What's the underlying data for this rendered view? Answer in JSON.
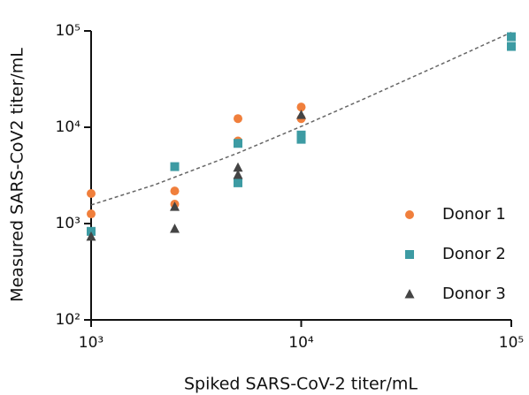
{
  "chart_data": {
    "type": "scatter",
    "x_label": "Spiked SARS-CoV-2 titer/mL",
    "y_label": "Measured SARS-CoV2 titer/mL",
    "xscale": "log",
    "yscale": "log",
    "xlim": [
      1000,
      100000
    ],
    "ylim": [
      100,
      100000
    ],
    "xticks": [
      {
        "value": 1000,
        "label": "10³"
      },
      {
        "value": 10000,
        "label": "10⁴"
      },
      {
        "value": 100000,
        "label": "10⁵"
      }
    ],
    "yticks": [
      {
        "value": 100,
        "label": "10²"
      },
      {
        "value": 1000,
        "label": "10³"
      },
      {
        "value": 10000,
        "label": "10⁴"
      },
      {
        "value": 100000,
        "label": "10⁵"
      }
    ],
    "legend": "lower right",
    "series": [
      {
        "name": "Donor 1",
        "color": "#f07f3c",
        "marker": "circle",
        "x": [
          1000,
          1000,
          2500,
          2500,
          5000,
          5000,
          10000,
          10000
        ],
        "values": [
          2050,
          1260,
          2180,
          1590,
          12300,
          7200,
          16200,
          12300
        ]
      },
      {
        "name": "Donor 2",
        "color": "#3d9ba3",
        "marker": "square",
        "x": [
          1000,
          2500,
          5000,
          5000,
          10000,
          10000,
          100000,
          100000
        ],
        "values": [
          830,
          3900,
          2650,
          6800,
          8300,
          7500,
          87000,
          69000
        ]
      },
      {
        "name": "Donor 3",
        "color": "#444444",
        "marker": "triangle",
        "x": [
          1000,
          2500,
          2500,
          5000,
          5000,
          10000
        ],
        "values": [
          730,
          1490,
          880,
          3800,
          3200,
          13400
        ]
      }
    ],
    "trend_line": {
      "color": "#666666",
      "style": "dashed",
      "x": [
        1000,
        2000,
        5000,
        10000,
        20000,
        50000,
        100000
      ],
      "values": [
        1560,
        2520,
        5400,
        10200,
        19800,
        48600,
        96600
      ]
    }
  }
}
